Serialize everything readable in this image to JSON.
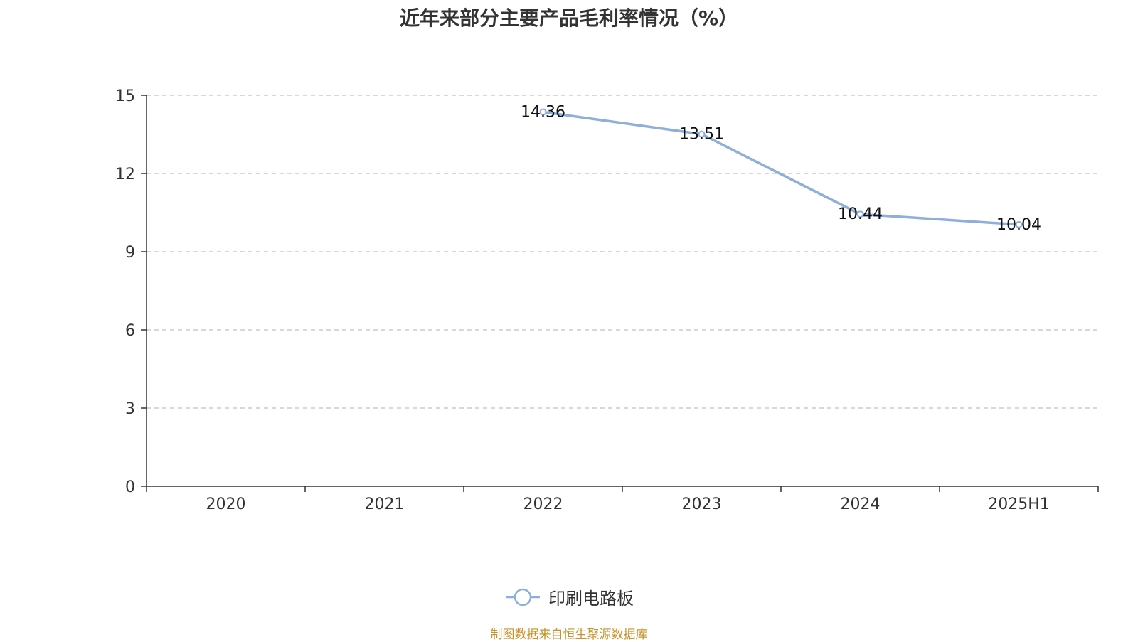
{
  "title": "近年来部分主要产品毛利率情况（%）",
  "source_note": "制图数据来自恒生聚源数据库",
  "colors": {
    "series": "#8eaedc",
    "axis": "#333333",
    "grid": "#cccccc",
    "text": "#333333",
    "source": "#c8922a"
  },
  "chart_data": {
    "type": "line",
    "title": "近年来部分主要产品毛利率情况（%）",
    "categories": [
      "2020",
      "2021",
      "2022",
      "2023",
      "2024",
      "2025H1"
    ],
    "series": [
      {
        "name": "印刷电路板",
        "values": [
          null,
          null,
          14.36,
          13.51,
          10.44,
          10.04
        ],
        "labels": [
          "",
          "",
          "14.36",
          "13.51",
          "10.44",
          "10.04"
        ]
      }
    ],
    "ylim": [
      0,
      15
    ],
    "yticks": [
      "0",
      "3",
      "6",
      "9",
      "12",
      "15"
    ],
    "grid": "horizontal dashed",
    "legend": "bottom-center"
  }
}
